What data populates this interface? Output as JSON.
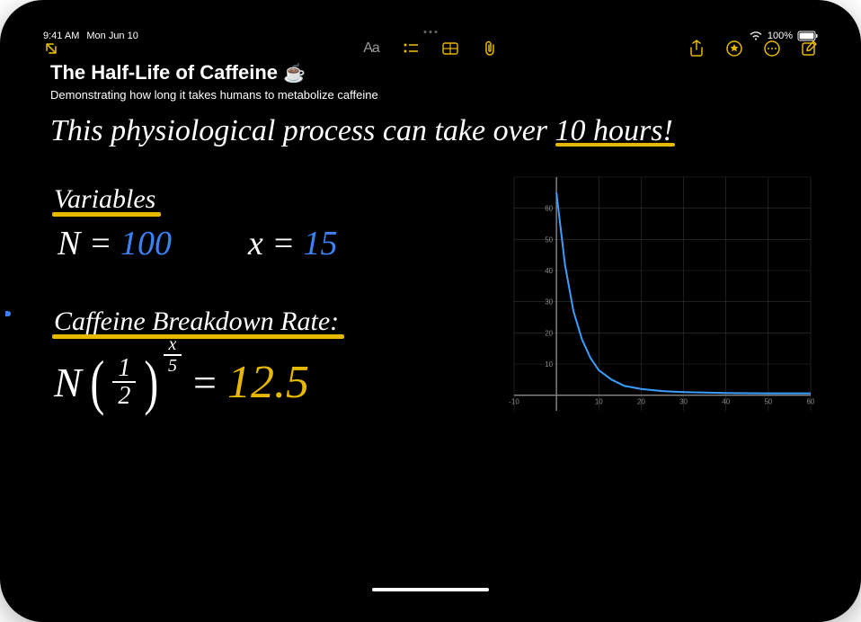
{
  "status_bar": {
    "time": "9:41 AM",
    "date": "Mon Jun 10",
    "battery_text": "100%"
  },
  "toolbar": {
    "collapse_icon": "collapse",
    "format_label": "Aa"
  },
  "note": {
    "title": "The Half-Life of Caffeine",
    "emoji": "☕",
    "subtitle": "Demonstrating how long it takes humans to metabolize caffeine",
    "handwritten_line": "This physiological process can take over",
    "handwritten_highlight": "10 hours!",
    "variables_label": "Variables",
    "var_n_label": "N =",
    "var_n_value": "100",
    "var_x_label": "x =",
    "var_x_value": "15",
    "rate_label": "Caffeine Breakdown Rate:",
    "formula_n": "N",
    "formula_frac_num": "1",
    "formula_frac_den": "2",
    "formula_exp_num": "x",
    "formula_exp_den": "5",
    "formula_eq": "=",
    "formula_result": "12.5"
  },
  "chart": {
    "type": "line",
    "xlim": [
      -10,
      60
    ],
    "ylim": [
      -5,
      70
    ],
    "xtick_labels": [
      "-10",
      "10",
      "20",
      "30",
      "40",
      "50",
      "60"
    ],
    "ytick_labels": [
      "10",
      "20",
      "30",
      "40",
      "50",
      "60"
    ],
    "grid_color": "#333333",
    "axis_color": "#888888",
    "line_color": "#3b9eff",
    "background_color": "#000000",
    "label_color": "#888888",
    "label_fontsize": 8,
    "curve_points": [
      [
        0,
        65
      ],
      [
        2,
        42
      ],
      [
        4,
        27
      ],
      [
        6,
        18
      ],
      [
        8,
        12
      ],
      [
        10,
        8
      ],
      [
        13,
        5
      ],
      [
        16,
        3
      ],
      [
        20,
        2
      ],
      [
        25,
        1.3
      ],
      [
        30,
        1
      ],
      [
        40,
        0.7
      ],
      [
        50,
        0.6
      ],
      [
        60,
        0.6
      ]
    ]
  },
  "colors": {
    "accent": "#e6b800",
    "handwriting_white": "#ffffff",
    "handwriting_blue": "#3b82f6",
    "highlight": "#e6b800",
    "background": "#000000"
  }
}
